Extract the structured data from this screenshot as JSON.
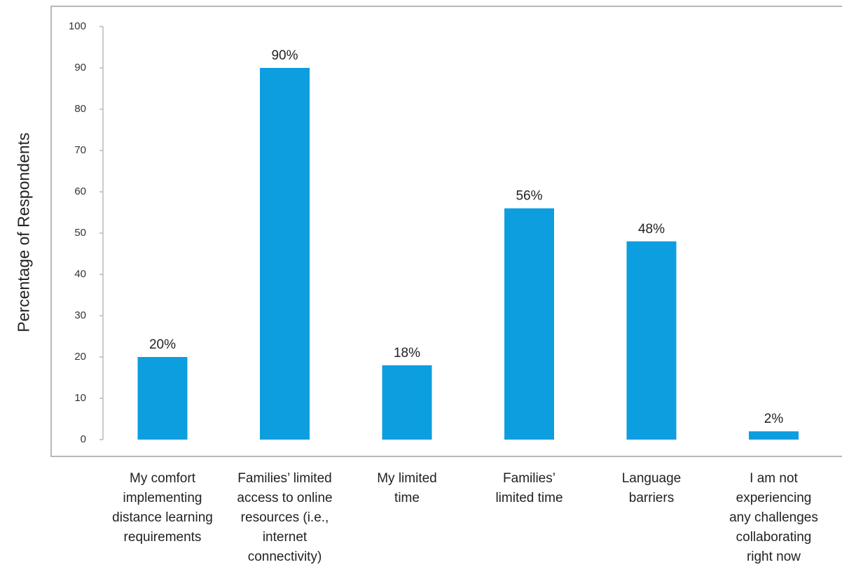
{
  "chart_data": {
    "type": "bar",
    "title": "",
    "xlabel": "",
    "ylabel": "Percentage of Respondents",
    "ylim": [
      0,
      100
    ],
    "yticks": [
      0,
      10,
      20,
      30,
      40,
      50,
      60,
      70,
      80,
      90,
      100
    ],
    "grid": false,
    "bar_color": "#0d9ee0",
    "categories": [
      "My comfort implementing distance learning requirements",
      "Families’ limited access to online resources (i.e., internet connectivity)",
      "My limited time",
      "Families’ limited time",
      "Language barriers",
      "I am not experiencing any challenges collaborating right now"
    ],
    "category_lines": [
      "My comfort\nimplementing\ndistance learning\nrequirements",
      "Families’ limited\naccess to online\nresources (i.e.,\ninternet\nconnectivity)",
      "My limited\ntime",
      "Families’\nlimited time",
      "Language\nbarriers",
      "I am not\nexperiencing\nany challenges\ncollaborating\nright now"
    ],
    "values": [
      20,
      90,
      18,
      56,
      48,
      2
    ],
    "data_labels": [
      "20%",
      "90%",
      "18%",
      "56%",
      "48%",
      "2%"
    ]
  }
}
